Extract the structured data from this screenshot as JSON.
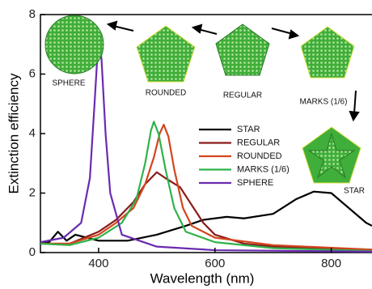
{
  "chart_data": {
    "type": "line",
    "xlabel": "Wavelength (nm)",
    "ylabel": "Extinction efficiency",
    "xlim": [
      300,
      870
    ],
    "ylim": [
      0,
      8
    ],
    "xticks": [
      400,
      600,
      800
    ],
    "yticks": [
      0,
      2,
      4,
      6,
      8
    ],
    "annotations": [
      "SPHERE",
      "ROUNDED",
      "REGULAR",
      "MARKS (1/6)",
      "STAR"
    ],
    "series": [
      {
        "name": "STAR",
        "color": "#000000",
        "x": [
          300,
          315,
          330,
          345,
          360,
          380,
          400,
          450,
          500,
          550,
          580,
          620,
          650,
          700,
          740,
          770,
          800,
          830,
          860,
          870
        ],
        "values": [
          0.3,
          0.35,
          0.7,
          0.4,
          0.6,
          0.5,
          0.4,
          0.4,
          0.6,
          0.9,
          1.1,
          1.2,
          1.15,
          1.3,
          1.8,
          2.05,
          2.0,
          1.5,
          1.0,
          0.9
        ]
      },
      {
        "name": "REGULAR",
        "color": "#8b1a1a",
        "x": [
          300,
          350,
          400,
          430,
          460,
          480,
          500,
          515,
          540,
          560,
          580,
          600,
          650,
          700,
          870
        ],
        "values": [
          0.3,
          0.3,
          0.7,
          1.1,
          1.7,
          2.3,
          2.7,
          2.5,
          2.2,
          1.6,
          1.0,
          0.6,
          0.3,
          0.2,
          0.1
        ]
      },
      {
        "name": "ROUNDED",
        "color": "#d2461e",
        "x": [
          300,
          350,
          400,
          430,
          460,
          480,
          495,
          505,
          512,
          520,
          530,
          545,
          560,
          600,
          700,
          870
        ],
        "values": [
          0.3,
          0.3,
          0.6,
          1.0,
          1.5,
          2.3,
          3.2,
          4.0,
          4.3,
          3.9,
          2.8,
          1.5,
          0.9,
          0.5,
          0.25,
          0.1
        ]
      },
      {
        "name": "MARKS (1/6)",
        "color": "#2fb34a",
        "x": [
          300,
          350,
          400,
          440,
          465,
          480,
          490,
          495,
          503,
          515,
          530,
          550,
          600,
          700,
          870
        ],
        "values": [
          0.3,
          0.25,
          0.5,
          1.0,
          1.8,
          3.0,
          4.1,
          4.4,
          4.0,
          2.8,
          1.5,
          0.7,
          0.35,
          0.15,
          0.05
        ]
      },
      {
        "name": "SPHERE",
        "color": "#6a2bb0",
        "x": [
          300,
          340,
          370,
          385,
          393,
          400,
          405,
          412,
          420,
          440,
          500,
          600,
          870
        ],
        "values": [
          0.35,
          0.5,
          1.0,
          2.5,
          5.0,
          7.3,
          6.5,
          4.0,
          2.0,
          0.6,
          0.2,
          0.08,
          0.03
        ]
      }
    ]
  }
}
